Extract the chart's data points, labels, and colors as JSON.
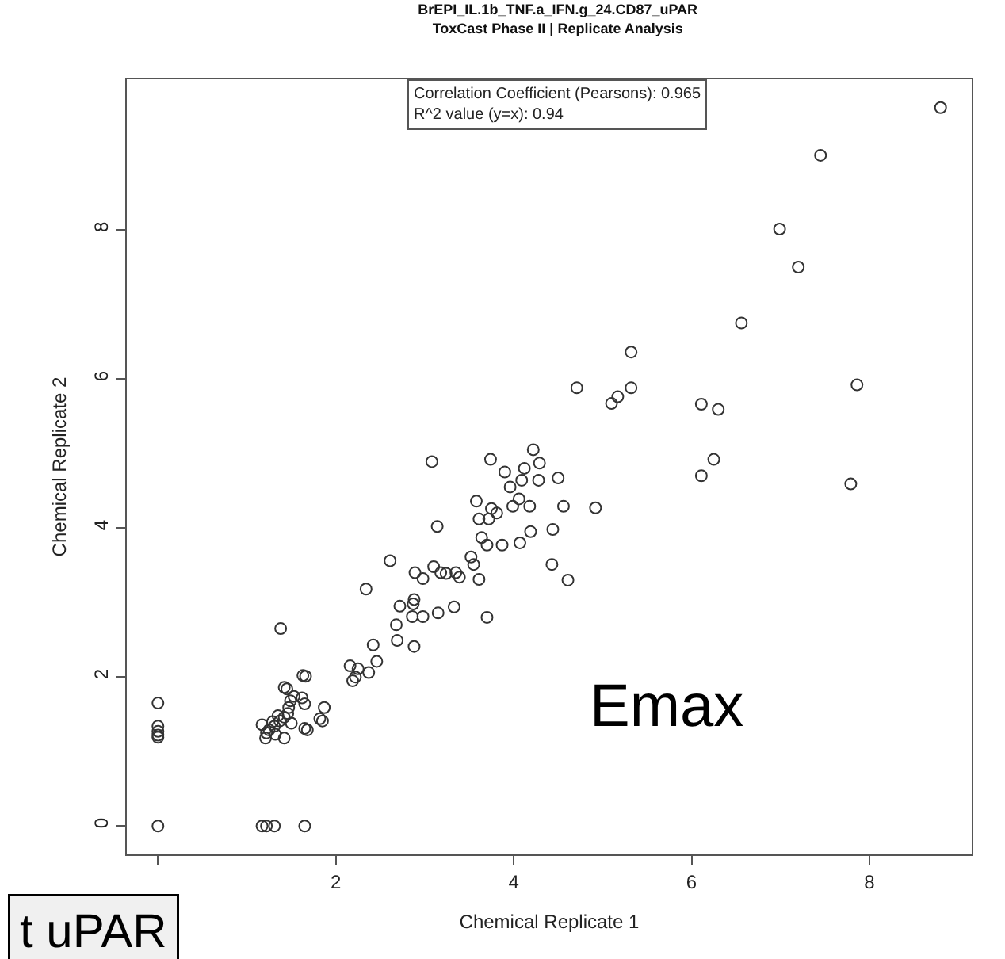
{
  "chart_data": {
    "type": "scatter",
    "title": "BrEPI_IL.1b_TNF.a_IFN.g_24.CD87_uPAR",
    "subtitle": "ToxCast Phase II | Replicate Analysis",
    "xlabel": "Chemical Replicate 1",
    "ylabel": "Chemical Replicate 2",
    "annotations": [
      "Correlation Coefficient (Pearsons): 0.965",
      "R^2 value (y=x): 0.94",
      "Emax",
      "t uPAR"
    ],
    "xlim": [
      -0.35,
      9.15
    ],
    "ylim": [
      -0.38,
      10.02
    ],
    "xticks": [
      {
        "value": 0,
        "label": null
      },
      2,
      4,
      6,
      8
    ],
    "yticks": [
      0,
      2,
      4,
      6,
      8
    ],
    "grid": false,
    "marker": "circle",
    "series": [
      {
        "color": "#333333",
        "x": [
          8.8,
          7.45,
          6.99,
          7.2,
          6.56,
          5.32,
          4.71,
          5.32,
          5.1,
          5.17,
          6.11,
          6.3,
          7.86,
          6.25,
          6.11,
          7.79,
          4.22,
          3.74,
          4.29,
          3.9,
          4.12,
          4.09,
          4.28,
          4.5,
          3.96,
          4.06,
          3.99,
          4.18,
          4.56,
          4.92,
          3.58,
          3.75,
          3.81,
          3.72,
          3.61,
          3.64,
          3.7,
          3.87,
          4.07,
          4.19,
          4.44,
          4.43,
          4.61,
          3.55,
          3.61,
          3.7,
          3.08,
          3.14,
          3.52,
          2.61,
          2.89,
          3.1,
          3.18,
          3.24,
          2.98,
          3.35,
          3.39,
          2.34,
          2.72,
          2.88,
          2.87,
          2.86,
          2.98,
          3.15,
          3.33,
          2.68,
          2.69,
          2.88,
          2.42,
          2.46,
          1.38,
          2.16,
          2.25,
          2.37,
          2.19,
          2.22,
          1.66,
          1.45,
          1.87,
          1.85,
          1.68,
          1.42,
          1.63,
          1.53,
          1.62,
          1.65,
          1.49,
          1.47,
          1.82,
          1.65,
          1.5,
          1.42,
          1.37,
          1.31,
          1.42,
          1.25,
          1.17,
          1.22,
          1.21,
          1.29,
          1.35,
          1.46,
          1.32,
          0,
          0,
          0,
          0,
          0,
          0,
          1.17,
          1.22,
          1.31,
          1.65
        ],
        "values": [
          9.64,
          9.0,
          8.01,
          7.5,
          6.75,
          6.36,
          5.88,
          5.88,
          5.67,
          5.76,
          5.66,
          5.59,
          5.92,
          4.92,
          4.7,
          4.59,
          5.05,
          4.92,
          4.87,
          4.75,
          4.8,
          4.64,
          4.64,
          4.67,
          4.55,
          4.39,
          4.29,
          4.29,
          4.29,
          4.27,
          4.36,
          4.26,
          4.2,
          4.12,
          4.12,
          3.87,
          3.77,
          3.77,
          3.8,
          3.95,
          3.98,
          3.51,
          3.3,
          3.51,
          3.31,
          2.8,
          4.89,
          4.02,
          3.61,
          3.56,
          3.4,
          3.48,
          3.4,
          3.39,
          3.32,
          3.4,
          3.34,
          3.18,
          2.95,
          3.04,
          2.98,
          2.81,
          2.81,
          2.86,
          2.94,
          2.7,
          2.49,
          2.41,
          2.43,
          2.21,
          2.65,
          2.15,
          2.11,
          2.06,
          1.95,
          2.0,
          2.01,
          1.84,
          1.59,
          1.41,
          1.29,
          1.86,
          2.02,
          1.74,
          1.72,
          1.64,
          1.68,
          1.59,
          1.44,
          1.31,
          1.38,
          1.46,
          1.41,
          1.34,
          1.18,
          1.29,
          1.36,
          1.25,
          1.18,
          1.4,
          1.48,
          1.51,
          1.23,
          1.65,
          1.34,
          1.27,
          1.22,
          1.19,
          0,
          0,
          0,
          0,
          0
        ]
      }
    ]
  }
}
